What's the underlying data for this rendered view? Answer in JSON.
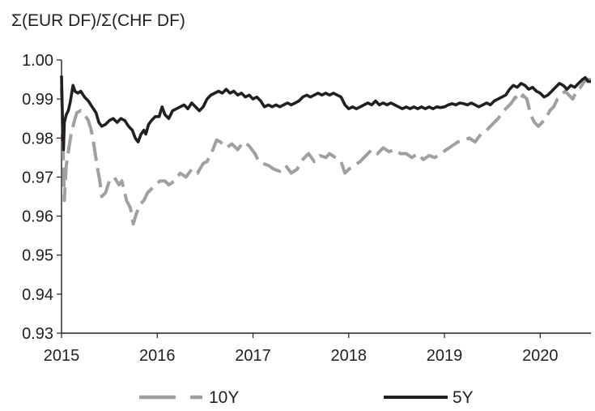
{
  "chart_data": {
    "type": "line",
    "title": "Σ(EUR DF)/Σ(CHF DF)",
    "xlabel": "",
    "ylabel": "",
    "xlim": [
      2015.0,
      2020.53
    ],
    "ylim": [
      0.93,
      1.0
    ],
    "x_ticks": [
      "2015",
      "2016",
      "2017",
      "2018",
      "2019",
      "2020"
    ],
    "y_ticks": [
      "0.93",
      "0.94",
      "0.95",
      "0.96",
      "0.97",
      "0.98",
      "0.99",
      "1.00"
    ],
    "grid": false,
    "legend_position": "bottom",
    "series": [
      {
        "name": "10Y",
        "color": "#a0a0a0",
        "style": "dashed",
        "points": [
          [
            2015.0,
            0.993
          ],
          [
            2015.02,
            0.974
          ],
          [
            2015.03,
            0.964
          ],
          [
            2015.05,
            0.973
          ],
          [
            2015.08,
            0.978
          ],
          [
            2015.1,
            0.981
          ],
          [
            2015.13,
            0.984
          ],
          [
            2015.16,
            0.9865
          ],
          [
            2015.2,
            0.987
          ],
          [
            2015.24,
            0.986
          ],
          [
            2015.28,
            0.9845
          ],
          [
            2015.31,
            0.982
          ],
          [
            2015.34,
            0.978
          ],
          [
            2015.37,
            0.973
          ],
          [
            2015.4,
            0.969
          ],
          [
            2015.42,
            0.965
          ],
          [
            2015.46,
            0.966
          ],
          [
            2015.5,
            0.969
          ],
          [
            2015.55,
            0.97
          ],
          [
            2015.6,
            0.968
          ],
          [
            2015.63,
            0.969
          ],
          [
            2015.68,
            0.964
          ],
          [
            2015.72,
            0.962
          ],
          [
            2015.75,
            0.958
          ],
          [
            2015.78,
            0.9605
          ],
          [
            2015.82,
            0.963
          ],
          [
            2015.86,
            0.964
          ],
          [
            2015.9,
            0.966
          ],
          [
            2015.94,
            0.967
          ],
          [
            2015.98,
            0.968
          ],
          [
            2016.03,
            0.969
          ],
          [
            2016.08,
            0.969
          ],
          [
            2016.12,
            0.968
          ],
          [
            2016.18,
            0.969
          ],
          [
            2016.24,
            0.971
          ],
          [
            2016.3,
            0.97
          ],
          [
            2016.36,
            0.972
          ],
          [
            2016.42,
            0.971
          ],
          [
            2016.48,
            0.9735
          ],
          [
            2016.52,
            0.974
          ],
          [
            2016.58,
            0.977
          ],
          [
            2016.62,
            0.9795
          ],
          [
            2016.66,
            0.979
          ],
          [
            2016.72,
            0.9775
          ],
          [
            2016.78,
            0.9785
          ],
          [
            2016.84,
            0.977
          ],
          [
            2016.9,
            0.979
          ],
          [
            2016.96,
            0.978
          ],
          [
            2017.02,
            0.976
          ],
          [
            2017.06,
            0.974
          ],
          [
            2017.1,
            0.9735
          ],
          [
            2017.16,
            0.973
          ],
          [
            2017.22,
            0.972
          ],
          [
            2017.28,
            0.9715
          ],
          [
            2017.34,
            0.973
          ],
          [
            2017.4,
            0.971
          ],
          [
            2017.46,
            0.972
          ],
          [
            2017.52,
            0.9745
          ],
          [
            2017.58,
            0.976
          ],
          [
            2017.64,
            0.974
          ],
          [
            2017.7,
            0.9755
          ],
          [
            2017.76,
            0.975
          ],
          [
            2017.8,
            0.976
          ],
          [
            2017.86,
            0.975
          ],
          [
            2017.92,
            0.974
          ],
          [
            2017.96,
            0.971
          ],
          [
            2018.0,
            0.972
          ],
          [
            2018.06,
            0.973
          ],
          [
            2018.12,
            0.974
          ],
          [
            2018.18,
            0.9755
          ],
          [
            2018.24,
            0.977
          ],
          [
            2018.3,
            0.976
          ],
          [
            2018.36,
            0.9775
          ],
          [
            2018.42,
            0.9765
          ],
          [
            2018.48,
            0.977
          ],
          [
            2018.54,
            0.976
          ],
          [
            2018.6,
            0.976
          ],
          [
            2018.66,
            0.975
          ],
          [
            2018.72,
            0.976
          ],
          [
            2018.78,
            0.9745
          ],
          [
            2018.84,
            0.9755
          ],
          [
            2018.9,
            0.975
          ],
          [
            2018.96,
            0.976
          ],
          [
            2019.02,
            0.977
          ],
          [
            2019.08,
            0.978
          ],
          [
            2019.14,
            0.979
          ],
          [
            2019.2,
            0.9795
          ],
          [
            2019.26,
            0.98
          ],
          [
            2019.32,
            0.979
          ],
          [
            2019.38,
            0.981
          ],
          [
            2019.44,
            0.982
          ],
          [
            2019.5,
            0.9835
          ],
          [
            2019.56,
            0.985
          ],
          [
            2019.62,
            0.987
          ],
          [
            2019.66,
            0.988
          ],
          [
            2019.7,
            0.989
          ],
          [
            2019.74,
            0.9905
          ],
          [
            2019.78,
            0.9895
          ],
          [
            2019.82,
            0.991
          ],
          [
            2019.86,
            0.99
          ],
          [
            2019.9,
            0.986
          ],
          [
            2019.94,
            0.984
          ],
          [
            2019.98,
            0.983
          ],
          [
            2020.02,
            0.984
          ],
          [
            2020.06,
            0.985
          ],
          [
            2020.1,
            0.987
          ],
          [
            2020.14,
            0.988
          ],
          [
            2020.18,
            0.99
          ],
          [
            2020.22,
            0.991
          ],
          [
            2020.26,
            0.992
          ],
          [
            2020.3,
            0.991
          ],
          [
            2020.34,
            0.99
          ],
          [
            2020.38,
            0.992
          ],
          [
            2020.42,
            0.993
          ],
          [
            2020.46,
            0.9945
          ],
          [
            2020.5,
            0.995
          ],
          [
            2020.53,
            0.995
          ]
        ]
      },
      {
        "name": "5Y",
        "color": "#231f20",
        "style": "solid",
        "points": [
          [
            2015.0,
            0.996
          ],
          [
            2015.01,
            0.985
          ],
          [
            2015.02,
            0.977
          ],
          [
            2015.03,
            0.984
          ],
          [
            2015.05,
            0.986
          ],
          [
            2015.07,
            0.987
          ],
          [
            2015.09,
            0.989
          ],
          [
            2015.11,
            0.992
          ],
          [
            2015.12,
            0.9935
          ],
          [
            2015.14,
            0.992
          ],
          [
            2015.17,
            0.9915
          ],
          [
            2015.2,
            0.992
          ],
          [
            2015.24,
            0.9905
          ],
          [
            2015.28,
            0.9895
          ],
          [
            2015.32,
            0.988
          ],
          [
            2015.36,
            0.9865
          ],
          [
            2015.39,
            0.984
          ],
          [
            2015.42,
            0.983
          ],
          [
            2015.46,
            0.9835
          ],
          [
            2015.5,
            0.9845
          ],
          [
            2015.54,
            0.985
          ],
          [
            2015.58,
            0.984
          ],
          [
            2015.62,
            0.985
          ],
          [
            2015.66,
            0.9845
          ],
          [
            2015.7,
            0.983
          ],
          [
            2015.74,
            0.982
          ],
          [
            2015.77,
            0.98
          ],
          [
            2015.8,
            0.979
          ],
          [
            2015.83,
            0.981
          ],
          [
            2015.86,
            0.982
          ],
          [
            2015.88,
            0.981
          ],
          [
            2015.91,
            0.9835
          ],
          [
            2015.94,
            0.9845
          ],
          [
            2015.98,
            0.9855
          ],
          [
            2016.02,
            0.9855
          ],
          [
            2016.05,
            0.988
          ],
          [
            2016.08,
            0.986
          ],
          [
            2016.12,
            0.985
          ],
          [
            2016.16,
            0.987
          ],
          [
            2016.2,
            0.9875
          ],
          [
            2016.24,
            0.988
          ],
          [
            2016.28,
            0.9885
          ],
          [
            2016.32,
            0.9875
          ],
          [
            2016.36,
            0.989
          ],
          [
            2016.4,
            0.988
          ],
          [
            2016.44,
            0.987
          ],
          [
            2016.48,
            0.988
          ],
          [
            2016.52,
            0.99
          ],
          [
            2016.56,
            0.991
          ],
          [
            2016.6,
            0.9915
          ],
          [
            2016.64,
            0.992
          ],
          [
            2016.68,
            0.9915
          ],
          [
            2016.72,
            0.9925
          ],
          [
            2016.76,
            0.9915
          ],
          [
            2016.8,
            0.992
          ],
          [
            2016.84,
            0.991
          ],
          [
            2016.88,
            0.9915
          ],
          [
            2016.92,
            0.9905
          ],
          [
            2016.96,
            0.991
          ],
          [
            2017.0,
            0.99
          ],
          [
            2017.04,
            0.9905
          ],
          [
            2017.08,
            0.9895
          ],
          [
            2017.12,
            0.988
          ],
          [
            2017.16,
            0.9885
          ],
          [
            2017.2,
            0.988
          ],
          [
            2017.24,
            0.9885
          ],
          [
            2017.28,
            0.988
          ],
          [
            2017.32,
            0.9885
          ],
          [
            2017.36,
            0.989
          ],
          [
            2017.4,
            0.9885
          ],
          [
            2017.44,
            0.989
          ],
          [
            2017.48,
            0.9895
          ],
          [
            2017.52,
            0.9905
          ],
          [
            2017.56,
            0.991
          ],
          [
            2017.6,
            0.9905
          ],
          [
            2017.64,
            0.991
          ],
          [
            2017.68,
            0.9915
          ],
          [
            2017.72,
            0.991
          ],
          [
            2017.76,
            0.9915
          ],
          [
            2017.8,
            0.991
          ],
          [
            2017.84,
            0.9915
          ],
          [
            2017.88,
            0.991
          ],
          [
            2017.92,
            0.9905
          ],
          [
            2017.96,
            0.9885
          ],
          [
            2018.0,
            0.9875
          ],
          [
            2018.04,
            0.988
          ],
          [
            2018.08,
            0.9875
          ],
          [
            2018.12,
            0.988
          ],
          [
            2018.16,
            0.9885
          ],
          [
            2018.2,
            0.989
          ],
          [
            2018.24,
            0.9885
          ],
          [
            2018.28,
            0.9895
          ],
          [
            2018.32,
            0.9885
          ],
          [
            2018.36,
            0.989
          ],
          [
            2018.4,
            0.9885
          ],
          [
            2018.44,
            0.989
          ],
          [
            2018.48,
            0.9885
          ],
          [
            2018.52,
            0.988
          ],
          [
            2018.56,
            0.9875
          ],
          [
            2018.6,
            0.988
          ],
          [
            2018.64,
            0.9875
          ],
          [
            2018.68,
            0.988
          ],
          [
            2018.72,
            0.9875
          ],
          [
            2018.76,
            0.988
          ],
          [
            2018.8,
            0.9875
          ],
          [
            2018.84,
            0.988
          ],
          [
            2018.88,
            0.9875
          ],
          [
            2018.92,
            0.988
          ],
          [
            2018.96,
            0.9878
          ],
          [
            2019.0,
            0.988
          ],
          [
            2019.04,
            0.9885
          ],
          [
            2019.08,
            0.9888
          ],
          [
            2019.12,
            0.9885
          ],
          [
            2019.16,
            0.989
          ],
          [
            2019.2,
            0.9888
          ],
          [
            2019.24,
            0.9885
          ],
          [
            2019.28,
            0.989
          ],
          [
            2019.32,
            0.9885
          ],
          [
            2019.36,
            0.988
          ],
          [
            2019.4,
            0.9885
          ],
          [
            2019.44,
            0.989
          ],
          [
            2019.48,
            0.9885
          ],
          [
            2019.52,
            0.9895
          ],
          [
            2019.56,
            0.99
          ],
          [
            2019.6,
            0.9905
          ],
          [
            2019.64,
            0.991
          ],
          [
            2019.68,
            0.9925
          ],
          [
            2019.72,
            0.9935
          ],
          [
            2019.76,
            0.993
          ],
          [
            2019.8,
            0.994
          ],
          [
            2019.84,
            0.9935
          ],
          [
            2019.88,
            0.9925
          ],
          [
            2019.92,
            0.993
          ],
          [
            2019.96,
            0.992
          ],
          [
            2020.0,
            0.9915
          ],
          [
            2020.04,
            0.9905
          ],
          [
            2020.08,
            0.991
          ],
          [
            2020.12,
            0.992
          ],
          [
            2020.16,
            0.993
          ],
          [
            2020.2,
            0.994
          ],
          [
            2020.24,
            0.9935
          ],
          [
            2020.28,
            0.9925
          ],
          [
            2020.32,
            0.9935
          ],
          [
            2020.36,
            0.993
          ],
          [
            2020.4,
            0.994
          ],
          [
            2020.44,
            0.995
          ],
          [
            2020.47,
            0.9955
          ],
          [
            2020.5,
            0.9945
          ],
          [
            2020.53,
            0.9945
          ]
        ]
      }
    ]
  }
}
